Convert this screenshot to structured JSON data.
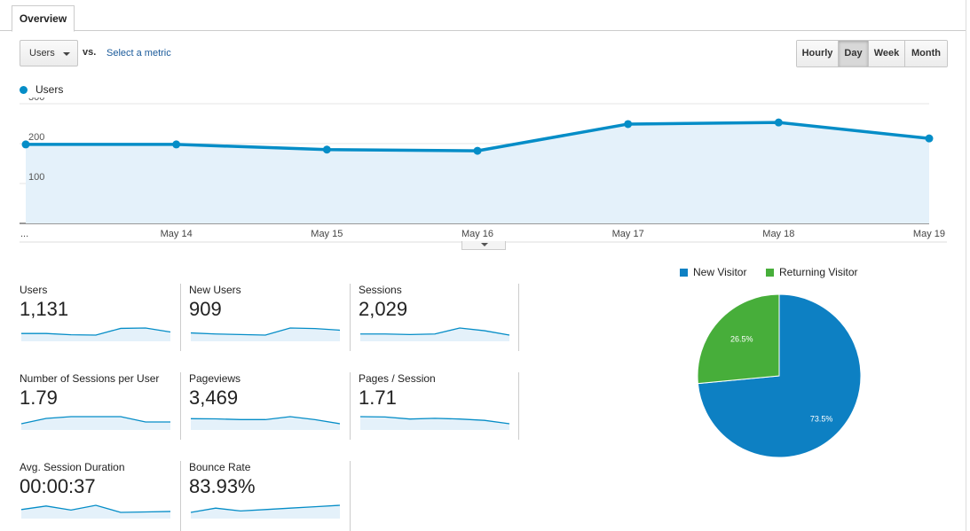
{
  "tabs": {
    "overview_label": "Overview"
  },
  "controls": {
    "metric_value": "Users",
    "vs_label": "vs.",
    "select_metric_label": "Select a metric",
    "granularity": [
      {
        "label": "Hourly",
        "active": false
      },
      {
        "label": "Day",
        "active": true
      },
      {
        "label": "Week",
        "active": false
      },
      {
        "label": "Month",
        "active": false
      }
    ]
  },
  "colors": {
    "accent": "#058dc7",
    "returning": "#50b432",
    "fill": "#e4f1fa",
    "pie_new": "#0d80c3",
    "pie_returning": "#47ae3a"
  },
  "chart_data": [
    {
      "type": "area",
      "series": [
        {
          "name": "Users",
          "values": [
            198,
            198,
            185,
            182,
            249,
            253,
            213
          ]
        }
      ],
      "x": [
        "...",
        "May 14",
        "May 15",
        "May 16",
        "May 17",
        "May 18",
        "May 19"
      ],
      "yticks": [
        "100",
        "200",
        "300"
      ],
      "ylim": [
        0,
        300
      ],
      "grid": true,
      "legend_position": "top-left"
    },
    {
      "type": "pie",
      "slices": [
        {
          "name": "New Visitor",
          "value": 73.5,
          "label": "73.5%"
        },
        {
          "name": "Returning Visitor",
          "value": 26.5,
          "label": "26.5%"
        }
      ],
      "legend_position": "top"
    }
  ],
  "metrics": [
    {
      "label": "Users",
      "value": "1,131",
      "spark": [
        198,
        198,
        185,
        182,
        249,
        253,
        213
      ]
    },
    {
      "label": "New Users",
      "value": "909",
      "spark": [
        160,
        150,
        145,
        140,
        205,
        200,
        185
      ]
    },
    {
      "label": "Sessions",
      "value": "2,029",
      "spark": [
        340,
        340,
        335,
        340,
        395,
        370,
        330
      ]
    },
    {
      "label": "Number of Sessions per User",
      "value": "1.79",
      "spark": [
        1.75,
        1.78,
        1.79,
        1.79,
        1.79,
        1.76,
        1.76
      ]
    },
    {
      "label": "Pageviews",
      "value": "3,469",
      "spark": [
        590,
        585,
        560,
        560,
        660,
        560,
        420
      ]
    },
    {
      "label": "Pages / Session",
      "value": "1.71",
      "spark": [
        1.76,
        1.75,
        1.69,
        1.71,
        1.69,
        1.65,
        1.55
      ]
    },
    {
      "label": "Avg. Session Duration",
      "value": "00:00:37",
      "spark": [
        30,
        45,
        28,
        48,
        18,
        20,
        22
      ]
    },
    {
      "label": "Bounce Rate",
      "value": "83.93%",
      "spark": [
        83,
        83.3,
        83.1,
        83.2,
        83.3,
        83.4,
        83.5
      ]
    }
  ]
}
